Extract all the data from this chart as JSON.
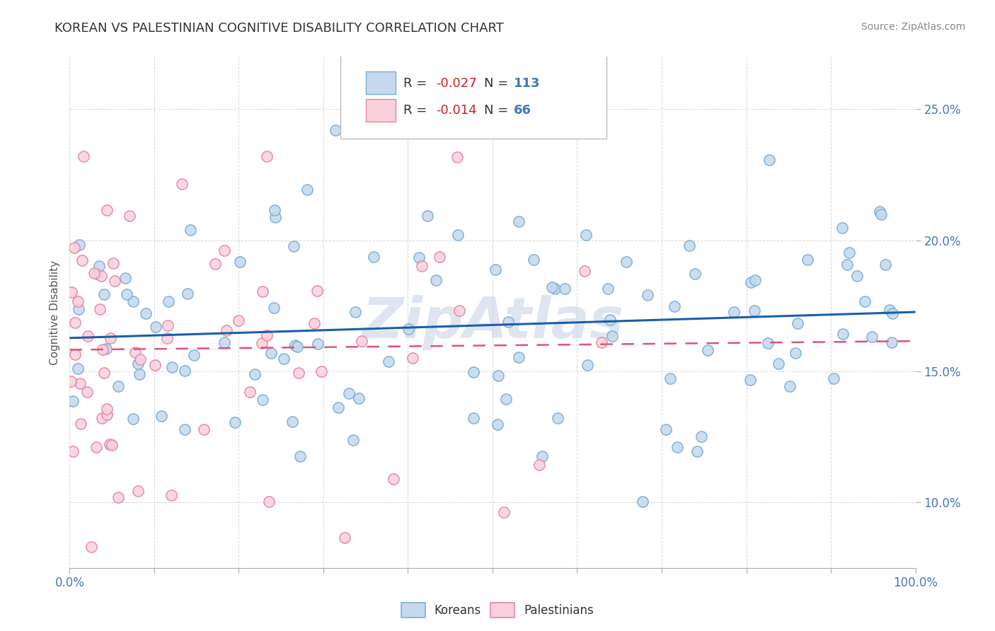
{
  "title": "KOREAN VS PALESTINIAN COGNITIVE DISABILITY CORRELATION CHART",
  "source_text": "Source: ZipAtlas.com",
  "ylabel": "Cognitive Disability",
  "yticks": [
    0.1,
    0.15,
    0.2,
    0.25
  ],
  "ytick_labels": [
    "10.0%",
    "15.0%",
    "20.0%",
    "25.0%"
  ],
  "xlim": [
    0.0,
    1.0
  ],
  "ylim": [
    0.075,
    0.27
  ],
  "korean_R": "-0.027",
  "korean_N": "113",
  "palestinian_R": "-0.014",
  "palestinian_N": "66",
  "korean_fill": "#c5d8ee",
  "korean_edge": "#7aafd4",
  "palestinian_fill": "#f9d0dc",
  "palestinian_edge": "#e885a0",
  "korean_line_color": "#1a5fa8",
  "palestinian_line_color": "#e05080",
  "watermark_color": "#c8d4e8",
  "background_color": "#ffffff",
  "legend_R_color": "#cc2222",
  "legend_N_color": "#4477bb",
  "legend_text_color": "#333333",
  "ytick_color": "#4477bb",
  "xtick_color": "#4477bb",
  "title_color": "#333333",
  "source_color": "#888888"
}
